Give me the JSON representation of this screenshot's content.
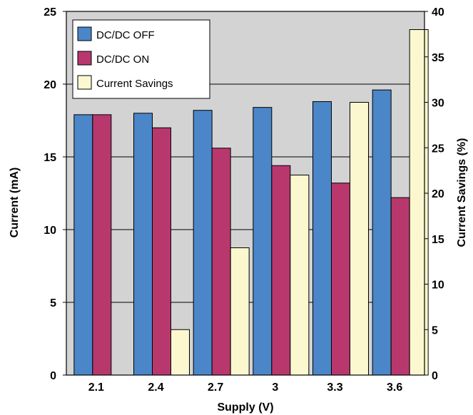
{
  "chart_data": {
    "type": "bar",
    "title": "",
    "xlabel": "Supply (V)",
    "ylabel": "Current (mA)",
    "y2label": "Current Savings (%)",
    "categories": [
      "2.1",
      "2.4",
      "2.7",
      "3",
      "3.3",
      "3.6"
    ],
    "ylim": [
      0,
      25
    ],
    "y2lim": [
      0,
      40
    ],
    "yticks": [
      "0",
      "5",
      "10",
      "15",
      "20",
      "25"
    ],
    "y2ticks": [
      "0",
      "5",
      "10",
      "15",
      "20",
      "25",
      "30",
      "35",
      "40"
    ],
    "grid": true,
    "legend_position": "top-left",
    "series": [
      {
        "name": "DC/DC OFF",
        "axis": "left",
        "color": "#4a86c8",
        "values": [
          17.9,
          18.0,
          18.2,
          18.4,
          18.8,
          19.6
        ]
      },
      {
        "name": "DC/DC ON",
        "axis": "left",
        "color": "#b8386e",
        "values": [
          17.9,
          17.0,
          15.6,
          14.4,
          13.2,
          12.2
        ]
      },
      {
        "name": "Current Savings",
        "axis": "right",
        "color": "#fbf8cf",
        "values": [
          0,
          5,
          14,
          22,
          30,
          38
        ]
      }
    ],
    "plot_background": "#d3d3d3"
  }
}
